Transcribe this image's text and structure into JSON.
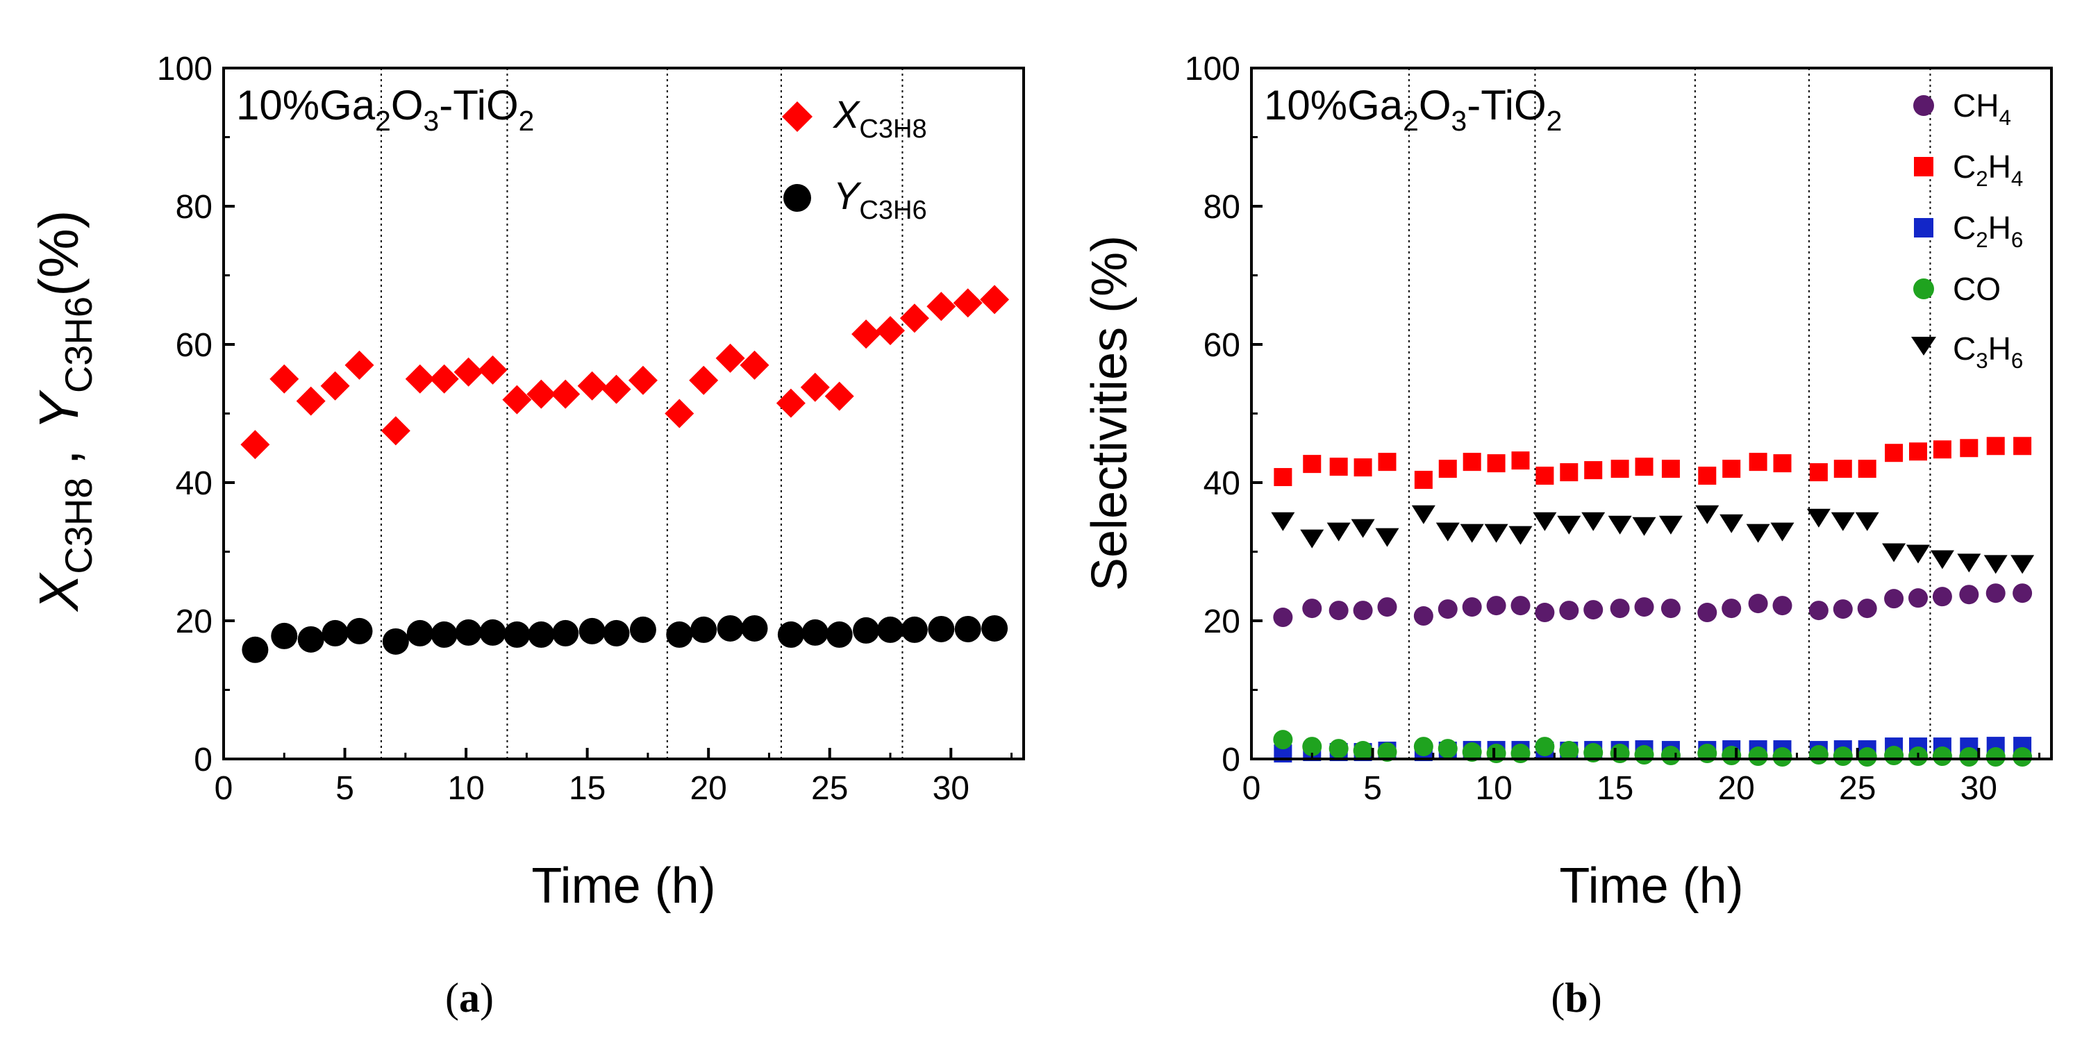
{
  "chart_data": [
    {
      "type": "scatter",
      "panel_label": "(a)",
      "annotation": {
        "text": "10%Ga",
        "sub1": "2",
        "text2": "O",
        "sub2": "3",
        "text3": "-TiO",
        "sub3": "2"
      },
      "xlabel": "Time (h)",
      "ylabel": {
        "x": "X",
        "x_sub": "C3H8",
        "comma": ",",
        "y": "Y",
        "y_sub": "C3H6",
        "unit": "(%)"
      },
      "xlim": [
        0,
        33
      ],
      "ylim": [
        0,
        100
      ],
      "xticks": [
        "0",
        "5",
        "10",
        "15",
        "20",
        "25",
        "30"
      ],
      "yticks": [
        "0",
        "20",
        "40",
        "60",
        "80",
        "100"
      ],
      "dividers": [
        6.5,
        11.7,
        18.3,
        23.0,
        28.0
      ],
      "series": [
        {
          "name": "X_C3H8",
          "label_main": "X",
          "label_sub": "C3H8",
          "marker": "diamond",
          "color": "#ff0000",
          "x": [
            1.3,
            2.5,
            3.6,
            4.6,
            5.6,
            7.1,
            8.1,
            9.1,
            10.1,
            11.1,
            12.1,
            13.1,
            14.1,
            15.2,
            16.2,
            17.3,
            18.8,
            19.8,
            20.9,
            21.9,
            23.4,
            24.4,
            25.4,
            26.5,
            27.5,
            28.5,
            29.6,
            30.7,
            31.8
          ],
          "values": [
            45.5,
            55.0,
            51.8,
            54.0,
            57.0,
            47.5,
            55.0,
            55.0,
            56.0,
            56.3,
            52.0,
            52.8,
            52.8,
            54.0,
            53.5,
            54.8,
            50.0,
            54.8,
            58.0,
            57.0,
            51.5,
            53.8,
            52.5,
            61.5,
            62.0,
            63.8,
            65.5,
            66.0,
            66.5
          ]
        },
        {
          "name": "Y_C3H6",
          "label_main": "Y",
          "label_sub": "C3H6",
          "marker": "circle",
          "color": "#000000",
          "x": [
            1.3,
            2.5,
            3.6,
            4.6,
            5.6,
            7.1,
            8.1,
            9.1,
            10.1,
            11.1,
            12.1,
            13.1,
            14.1,
            15.2,
            16.2,
            17.3,
            18.8,
            19.8,
            20.9,
            21.9,
            23.4,
            24.4,
            25.4,
            26.5,
            27.5,
            28.5,
            29.6,
            30.7,
            31.8
          ],
          "values": [
            15.8,
            17.8,
            17.3,
            18.2,
            18.5,
            17.0,
            18.2,
            18.0,
            18.3,
            18.3,
            18.0,
            18.0,
            18.2,
            18.5,
            18.2,
            18.7,
            18.0,
            18.7,
            18.9,
            18.9,
            18.0,
            18.3,
            18.0,
            18.6,
            18.7,
            18.7,
            18.8,
            18.8,
            18.9
          ]
        }
      ]
    },
    {
      "type": "scatter",
      "panel_label": "(b)",
      "annotation": {
        "text": "10%Ga",
        "sub1": "2",
        "text2": "O",
        "sub2": "3",
        "text3": "-TiO",
        "sub3": "2"
      },
      "xlabel": "Time (h)",
      "ylabel": "Selectivities (%)",
      "xlim": [
        0,
        33
      ],
      "ylim": [
        0,
        100
      ],
      "xticks": [
        "0",
        "5",
        "10",
        "15",
        "20",
        "25",
        "30"
      ],
      "yticks": [
        "0",
        "20",
        "40",
        "60",
        "80",
        "100"
      ],
      "dividers": [
        6.5,
        11.7,
        18.3,
        23.0,
        28.0
      ],
      "series": [
        {
          "name": "CH4",
          "label_main": "CH",
          "label_sub": "4",
          "label_main2": "",
          "label_sub2": "",
          "marker": "circle",
          "color": "#5b1a6b",
          "x": [
            1.3,
            2.5,
            3.6,
            4.6,
            5.6,
            7.1,
            8.1,
            9.1,
            10.1,
            11.1,
            12.1,
            13.1,
            14.1,
            15.2,
            16.2,
            17.3,
            18.8,
            19.8,
            20.9,
            21.9,
            23.4,
            24.4,
            25.4,
            26.5,
            27.5,
            28.5,
            29.6,
            30.7,
            31.8
          ],
          "values": [
            20.5,
            21.8,
            21.5,
            21.5,
            22.0,
            20.7,
            21.7,
            22.0,
            22.2,
            22.2,
            21.2,
            21.5,
            21.6,
            21.8,
            22.0,
            21.8,
            21.2,
            21.8,
            22.5,
            22.2,
            21.5,
            21.7,
            21.8,
            23.2,
            23.3,
            23.5,
            23.8,
            24.0,
            24.0
          ]
        },
        {
          "name": "C2H4",
          "label_main": "C",
          "label_sub": "2",
          "label_main2": "H",
          "label_sub2": "4",
          "marker": "square",
          "color": "#ff0000",
          "x": [
            1.3,
            2.5,
            3.6,
            4.6,
            5.6,
            7.1,
            8.1,
            9.1,
            10.1,
            11.1,
            12.1,
            13.1,
            14.1,
            15.2,
            16.2,
            17.3,
            18.8,
            19.8,
            20.9,
            21.9,
            23.4,
            24.4,
            25.4,
            26.5,
            27.5,
            28.5,
            29.6,
            30.7,
            31.8
          ],
          "values": [
            40.8,
            42.7,
            42.3,
            42.2,
            43.0,
            40.4,
            42.0,
            43.0,
            42.8,
            43.2,
            41.0,
            41.5,
            41.8,
            42.0,
            42.3,
            42.0,
            41.0,
            42.0,
            43.0,
            42.8,
            41.5,
            42.0,
            42.0,
            44.3,
            44.5,
            44.8,
            45.0,
            45.3,
            45.3
          ]
        },
        {
          "name": "C2H6",
          "label_main": "C",
          "label_sub": "2",
          "label_main2": "H",
          "label_sub2": "6",
          "marker": "square",
          "color": "#1226c8",
          "x": [
            1.3,
            2.5,
            3.6,
            4.6,
            5.6,
            7.1,
            8.1,
            9.1,
            10.1,
            11.1,
            12.1,
            13.1,
            14.1,
            15.2,
            16.2,
            17.3,
            18.8,
            19.8,
            20.9,
            21.9,
            23.4,
            24.4,
            25.4,
            26.5,
            27.5,
            28.5,
            29.6,
            30.7,
            31.8
          ],
          "values": [
            0.8,
            1.0,
            1.0,
            1.0,
            1.2,
            1.0,
            1.2,
            1.3,
            1.3,
            1.3,
            1.2,
            1.2,
            1.3,
            1.3,
            1.4,
            1.3,
            1.3,
            1.4,
            1.4,
            1.4,
            1.3,
            1.4,
            1.4,
            1.8,
            1.8,
            1.8,
            1.8,
            1.9,
            1.9
          ]
        },
        {
          "name": "CO",
          "label_main": "CO",
          "label_sub": "",
          "label_main2": "",
          "label_sub2": "",
          "marker": "circle",
          "color": "#1fa31f",
          "x": [
            1.3,
            2.5,
            3.6,
            4.6,
            5.6,
            7.1,
            8.1,
            9.1,
            10.1,
            11.1,
            12.1,
            13.1,
            14.1,
            15.2,
            16.2,
            17.3,
            18.8,
            19.8,
            20.9,
            21.9,
            23.4,
            24.4,
            25.4,
            26.5,
            27.5,
            28.5,
            29.6,
            30.7,
            31.8
          ],
          "values": [
            2.8,
            1.8,
            1.5,
            1.2,
            1.0,
            1.8,
            1.5,
            1.0,
            0.8,
            0.8,
            1.8,
            1.2,
            0.9,
            0.8,
            0.6,
            0.5,
            0.8,
            0.5,
            0.4,
            0.3,
            0.6,
            0.4,
            0.3,
            0.5,
            0.4,
            0.4,
            0.3,
            0.3,
            0.3
          ]
        },
        {
          "name": "C3H6",
          "label_main": "C",
          "label_sub": "3",
          "label_main2": "H",
          "label_sub2": "6",
          "marker": "triangle-down",
          "color": "#000000",
          "x": [
            1.3,
            2.5,
            3.6,
            4.6,
            5.6,
            7.1,
            8.1,
            9.1,
            10.1,
            11.1,
            12.1,
            13.1,
            14.1,
            15.2,
            16.2,
            17.3,
            18.8,
            19.8,
            20.9,
            21.9,
            23.4,
            24.4,
            25.4,
            26.5,
            27.5,
            28.5,
            29.6,
            30.7,
            31.8
          ],
          "values": [
            34.5,
            32.0,
            33.0,
            33.5,
            32.2,
            35.5,
            33.0,
            32.8,
            32.8,
            32.5,
            34.5,
            34.0,
            34.5,
            34.0,
            33.8,
            34.0,
            35.5,
            34.2,
            32.8,
            33.0,
            35.0,
            34.5,
            34.5,
            30.0,
            29.8,
            29.0,
            28.5,
            28.3,
            28.3
          ]
        }
      ]
    }
  ]
}
